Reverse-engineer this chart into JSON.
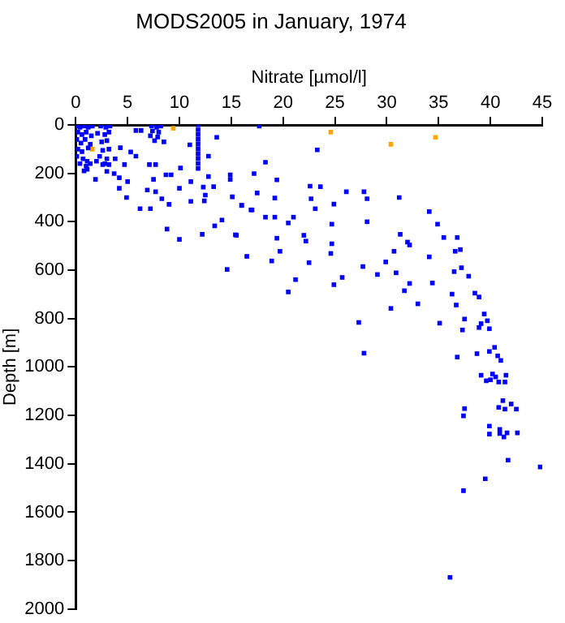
{
  "chart_data": {
    "type": "scatter",
    "title": "MODS2005 in January, 1974",
    "xlabel": "Nitrate [µmol/l]",
    "ylabel": "Depth [m]",
    "xlim": [
      0,
      45
    ],
    "xticks": [
      0,
      5,
      10,
      15,
      20,
      25,
      30,
      35,
      40,
      45
    ],
    "ylim": [
      2000,
      0
    ],
    "yticks": [
      0,
      200,
      400,
      600,
      800,
      1000,
      1200,
      1400,
      1600,
      1800,
      2000
    ],
    "grid": false,
    "legend": false,
    "marker": "square",
    "series": [
      {
        "color": "#0000ff",
        "x": [
          17.7,
          23.3,
          18.3,
          17.2,
          19.4,
          22.6,
          23.6,
          17.5,
          26.1,
          27.8,
          28.1,
          31.2,
          19.2,
          22.7,
          16.0,
          17.0,
          23.1,
          24.9,
          34.1,
          18.3,
          19.2,
          21.0,
          20.5,
          24.7,
          28.1,
          34.9,
          31.3,
          22.0,
          19.4,
          22.2,
          24.7,
          32.0,
          35.5,
          36.8,
          15.5,
          16.5,
          19.7,
          18.9,
          24.6,
          30.7,
          22.5,
          32.2,
          36.6,
          37.1,
          34.1,
          27.7,
          29.9,
          36.5,
          37.2,
          25.7,
          29.1,
          30.9,
          37.9,
          21.2,
          24.9,
          32.2,
          34.4,
          20.5,
          31.7,
          36.3,
          38.5,
          38.9,
          33.0,
          36.7,
          30.4,
          39.4,
          37.5,
          39.7,
          35.1,
          39.1,
          27.3,
          37.3,
          38.9,
          39.9,
          27.8,
          36.8,
          38.7,
          39.9,
          40.4,
          40.7,
          41.0,
          39.1,
          40.2,
          40.5,
          41.5,
          39.6,
          40.0,
          40.8,
          41.4,
          41.2,
          42.0,
          40.8,
          41.4,
          42.5,
          37.5,
          37.4,
          39.9,
          40.9,
          39.9,
          40.9,
          41.6,
          42.6,
          41.3,
          41.7,
          44.8,
          39.5,
          37.4,
          36.1,
          5.8,
          6.3,
          11.0,
          13.6,
          12.8,
          4.3,
          5.3,
          5.8,
          3.8,
          3.2,
          2.6,
          4.7,
          7.1,
          7.7,
          8.7,
          9.2,
          10.1,
          14.9,
          14.9,
          12.8,
          11.1,
          4.2,
          5.0,
          1.9,
          1.1,
          7.5,
          3.7,
          3.0,
          4.2,
          6.9,
          7.7,
          10.0,
          12.3,
          13.3,
          4.9,
          8.3,
          9.0,
          12.5,
          15.1,
          16.0,
          6.2,
          7.2,
          11.1,
          12.4,
          16.9,
          8.8,
          10.0,
          12.2,
          13.4,
          14.1,
          15.4,
          14.6,
          0.1,
          0.4,
          0.8,
          1.2,
          1.6,
          2.4,
          2.9,
          3.3,
          0.2,
          0.6,
          1.0,
          1.5,
          2.1,
          2.8,
          3.2,
          0.1,
          0.5,
          0.9,
          1.4,
          2.5,
          3.0,
          0.2,
          0.6,
          1.2,
          2.6,
          3.2,
          0.1,
          0.7,
          1.1,
          2.3,
          3.0,
          0.4,
          1.0,
          2.0,
          2.8,
          0.8,
          1.4,
          7.3,
          7.8,
          8.2,
          7.4,
          8.0,
          7.2,
          7.9,
          7.6,
          8.5,
          11.8,
          11.8,
          11.8,
          11.8,
          11.8,
          11.8,
          11.8,
          11.8,
          11.8,
          11.8
        ],
        "values": [
          5,
          103,
          154,
          201,
          227,
          253,
          255,
          281,
          276,
          276,
          305,
          300,
          302,
          305,
          332,
          351,
          346,
          327,
          358,
          381,
          381,
          381,
          405,
          410,
          400,
          410,
          452,
          456,
          468,
          480,
          491,
          484,
          465,
          465,
          456,
          543,
          522,
          562,
          531,
          522,
          569,
          496,
          522,
          515,
          545,
          585,
          566,
          606,
          590,
          630,
          618,
          611,
          625,
          639,
          660,
          655,
          653,
          690,
          685,
          699,
          695,
          711,
          739,
          744,
          758,
          781,
          802,
          809,
          819,
          821,
          816,
          847,
          837,
          842,
          943,
          959,
          945,
          936,
          919,
          954,
          973,
          1034,
          1029,
          1041,
          1034,
          1057,
          1053,
          1062,
          1062,
          1139,
          1153,
          1167,
          1174,
          1174,
          1172,
          1202,
          1244,
          1258,
          1277,
          1275,
          1272,
          1272,
          1289,
          1385,
          1413,
          1462,
          1511,
          1869,
          23,
          23,
          82,
          51,
          129,
          94,
          112,
          129,
          140,
          164,
          164,
          164,
          164,
          164,
          206,
          206,
          178,
          206,
          225,
          213,
          234,
          218,
          234,
          225,
          183,
          225,
          201,
          192,
          262,
          269,
          276,
          262,
          257,
          255,
          300,
          305,
          328,
          290,
          297,
          333,
          346,
          346,
          316,
          314,
          351,
          430,
          473,
          452,
          417,
          393,
          454,
          597,
          5,
          10,
          5,
          10,
          5,
          5,
          10,
          5,
          30,
          40,
          30,
          45,
          35,
          40,
          30,
          60,
          75,
          60,
          80,
          70,
          65,
          100,
          110,
          95,
          105,
          100,
          130,
          140,
          150,
          130,
          140,
          160,
          170,
          150,
          160,
          190,
          160,
          5,
          10,
          5,
          25,
          30,
          45,
          50,
          65,
          70,
          0,
          20,
          40,
          60,
          80,
          100,
          120,
          140,
          160,
          180
        ]
      },
      {
        "color": "#ffa500",
        "x": [
          9.4,
          1.6,
          24.6,
          30.4,
          34.7
        ],
        "values": [
          14,
          100,
          30,
          80,
          51
        ]
      }
    ]
  }
}
